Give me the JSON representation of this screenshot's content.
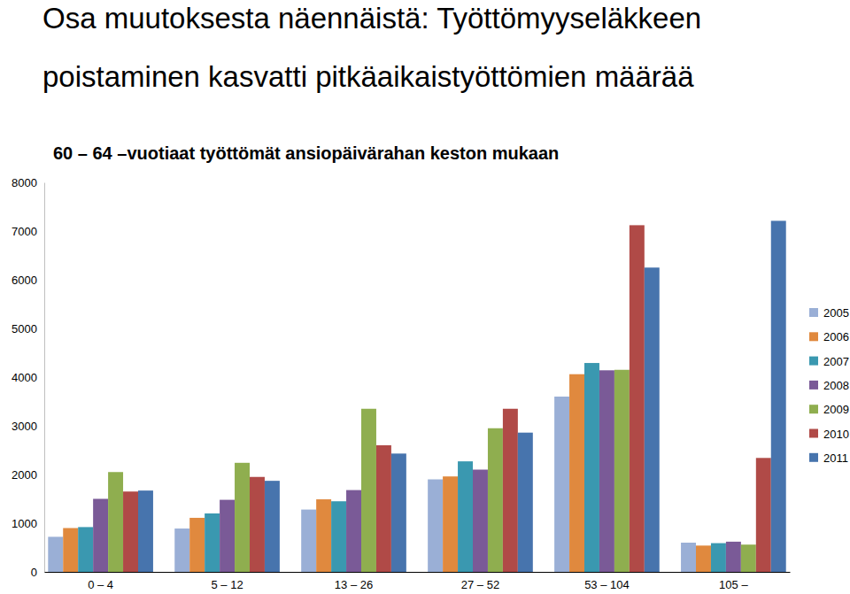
{
  "chart_data": {
    "type": "bar",
    "title": [
      "Osa muutoksesta näennäistä: Työttömyyseläkkeen",
      "poistaminen kasvatti pitkäaikaistyöttömien määrää"
    ],
    "subtitle": "60 – 64 –vuotiaat työttömät ansiopäivärahan keston mukaan",
    "categories": [
      "0 – 4",
      "5 – 12",
      "13 – 26",
      "27 – 52",
      "53 – 104",
      "105 –"
    ],
    "series": [
      {
        "name": "2005",
        "color": "#9aafd6",
        "values": [
          720,
          890,
          1280,
          1900,
          3600,
          600
        ]
      },
      {
        "name": "2006",
        "color": "#e0893e",
        "values": [
          900,
          1110,
          1490,
          1960,
          4060,
          540
        ]
      },
      {
        "name": "2007",
        "color": "#3a98b0",
        "values": [
          920,
          1200,
          1450,
          2270,
          4290,
          590
        ]
      },
      {
        "name": "2008",
        "color": "#7a5a97",
        "values": [
          1500,
          1480,
          1680,
          2100,
          4140,
          620
        ]
      },
      {
        "name": "2009",
        "color": "#8fae4f",
        "values": [
          2050,
          2240,
          3350,
          2950,
          4150,
          560
        ]
      },
      {
        "name": "2010",
        "color": "#b04a47",
        "values": [
          1650,
          1950,
          2600,
          3350,
          7120,
          2340
        ]
      },
      {
        "name": "2011",
        "color": "#4774ad",
        "values": [
          1670,
          1870,
          2430,
          2860,
          6250,
          7210
        ]
      }
    ],
    "ylim": [
      0,
      8000
    ],
    "yticks": [
      0,
      1000,
      2000,
      3000,
      4000,
      5000,
      6000,
      7000,
      8000
    ],
    "grid": false,
    "legend": "right"
  }
}
